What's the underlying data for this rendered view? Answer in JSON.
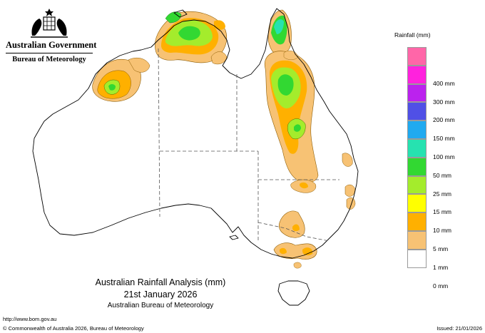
{
  "header": {
    "gov_title": "Australian Government",
    "bom_title": "Bureau of Meteorology"
  },
  "legend": {
    "title": "Rainfall (mm)",
    "items": [
      {
        "label": "",
        "color": "#ff66a8"
      },
      {
        "label": "400 mm",
        "color": "#ff22dd"
      },
      {
        "label": "300 mm",
        "color": "#bb22ee"
      },
      {
        "label": "200 mm",
        "color": "#5050e6"
      },
      {
        "label": "150 mm",
        "color": "#20aaf0"
      },
      {
        "label": "100 mm",
        "color": "#26e2b0"
      },
      {
        "label": "50 mm",
        "color": "#32d832"
      },
      {
        "label": "25 mm",
        "color": "#a4ec2c"
      },
      {
        "label": "15 mm",
        "color": "#ffff00"
      },
      {
        "label": "10 mm",
        "color": "#ffb000"
      },
      {
        "label": "5 mm",
        "color": "#f7c274"
      },
      {
        "label": "1 mm",
        "color": "#ffffff"
      },
      {
        "label": "0 mm",
        "color": ""
      }
    ]
  },
  "caption": {
    "line1": "Australian Rainfall Analysis (mm)",
    "line2": "21st January 2026",
    "line3": "Australian Bureau of Meteorology"
  },
  "footer": {
    "url": "http://www.bom.gov.au",
    "copyright": "© Commonwealth of Australia 2026, Bureau of Meteorology",
    "issued": "Issued: 21/01/2026"
  }
}
